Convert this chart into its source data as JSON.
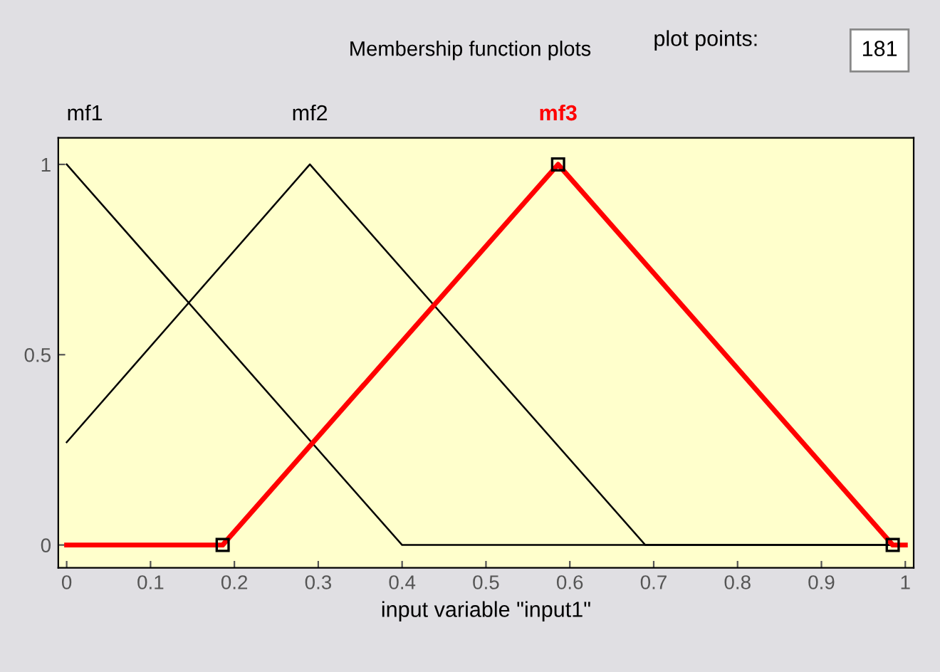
{
  "chart_data": {
    "type": "line",
    "title": "Membership function plots",
    "xlabel": "input variable \"input1\"",
    "annotations": [
      "plot points:",
      "181"
    ],
    "xlim": [
      -0.01,
      1.01
    ],
    "ylim": [
      -0.06,
      1.07
    ],
    "xticks": [
      0,
      0.1,
      0.2,
      0.3,
      0.4,
      0.5,
      0.6,
      0.7,
      0.8,
      0.9,
      1
    ],
    "yticks": [
      0,
      0.5,
      1
    ],
    "grid": false,
    "legend": false,
    "series": [
      {
        "name": "mf1",
        "color": "#000000",
        "marker": "none",
        "x": [
          0,
          0.4,
          1
        ],
        "values": [
          1,
          0,
          0
        ]
      },
      {
        "name": "mf2",
        "color": "#000000",
        "marker": "none",
        "x": [
          0,
          0.29,
          0.69,
          1
        ],
        "values": [
          0.27,
          1,
          0,
          0
        ]
      },
      {
        "name": "mf3",
        "color": "#ff0000",
        "marker": "square",
        "x": [
          0,
          0.186,
          0.586,
          0.985,
          1
        ],
        "values": [
          0,
          0,
          1,
          0,
          0
        ]
      }
    ]
  }
}
